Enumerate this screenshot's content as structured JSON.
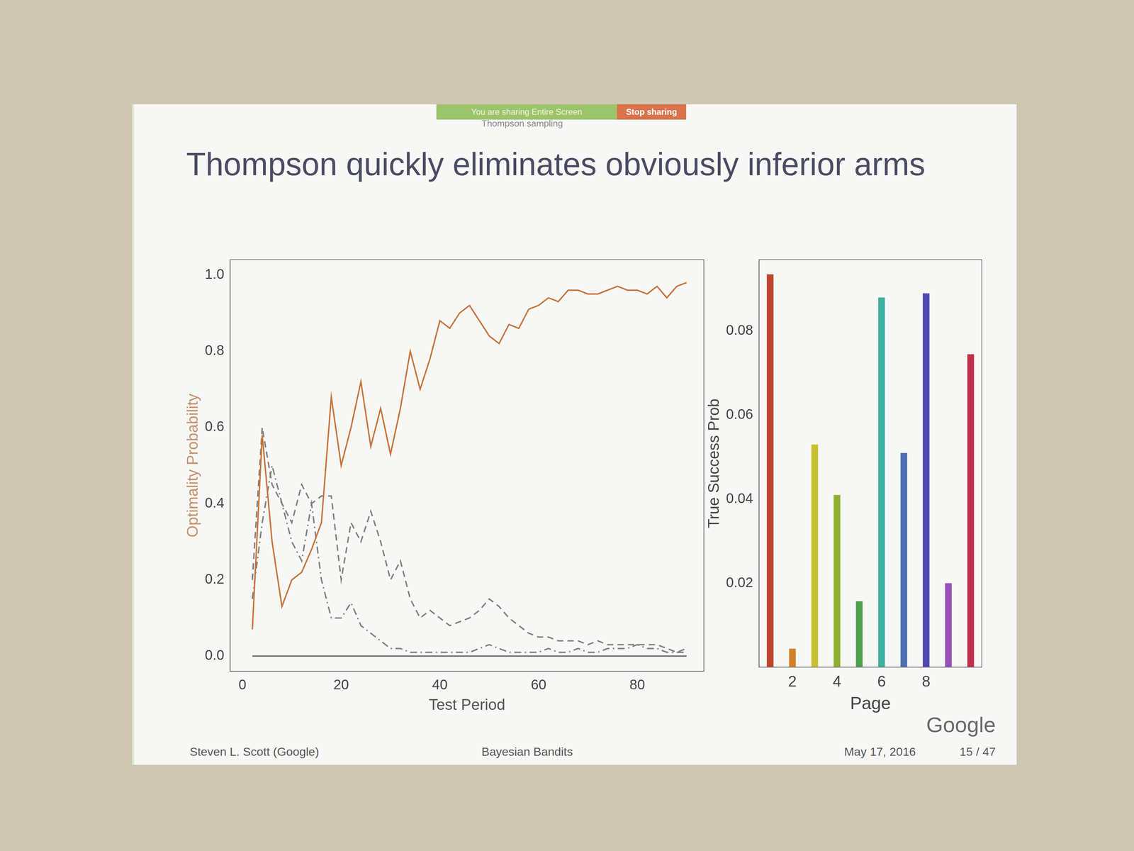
{
  "sharing_bar": {
    "notice": "You are sharing Entire Screen",
    "button": "Stop sharing"
  },
  "section": "Thompson sampling",
  "title": "Thompson quickly eliminates obviously inferior arms",
  "footer": {
    "author": "Steven L. Scott (Google)",
    "talk": "Bayesian Bandits",
    "date": "May 17, 2016",
    "page": "15 / 47"
  },
  "logo": "Google",
  "chart_data": [
    {
      "type": "line",
      "x_label": "Test Period",
      "y_label": "Optimality Probability",
      "x": [
        2,
        4,
        6,
        8,
        10,
        12,
        14,
        16,
        18,
        20,
        22,
        24,
        26,
        28,
        30,
        32,
        34,
        36,
        38,
        40,
        42,
        44,
        46,
        48,
        50,
        52,
        54,
        56,
        58,
        60,
        62,
        64,
        66,
        68,
        70,
        72,
        74,
        76,
        78,
        80,
        82,
        84,
        86,
        88,
        90
      ],
      "series": [
        {
          "color": "#c8733a",
          "line_style": "solid",
          "values": [
            0.07,
            0.58,
            0.3,
            0.13,
            0.2,
            0.22,
            0.28,
            0.35,
            0.68,
            0.5,
            0.6,
            0.72,
            0.55,
            0.65,
            0.53,
            0.65,
            0.8,
            0.7,
            0.78,
            0.88,
            0.86,
            0.9,
            0.92,
            0.88,
            0.84,
            0.82,
            0.87,
            0.86,
            0.91,
            0.92,
            0.94,
            0.93,
            0.96,
            0.96,
            0.95,
            0.95,
            0.96,
            0.97,
            0.96,
            0.96,
            0.95,
            0.97,
            0.94,
            0.97,
            0.98
          ]
        },
        {
          "color": "#808080",
          "line_style": "dashed",
          "values": [
            0.2,
            0.6,
            0.45,
            0.4,
            0.35,
            0.45,
            0.4,
            0.42,
            0.42,
            0.2,
            0.35,
            0.3,
            0.38,
            0.3,
            0.2,
            0.25,
            0.15,
            0.1,
            0.12,
            0.1,
            0.08,
            0.09,
            0.1,
            0.12,
            0.15,
            0.13,
            0.1,
            0.08,
            0.06,
            0.05,
            0.05,
            0.04,
            0.04,
            0.04,
            0.03,
            0.04,
            0.03,
            0.03,
            0.03,
            0.03,
            0.03,
            0.03,
            0.02,
            0.01,
            0.02
          ]
        },
        {
          "color": "#808080",
          "line_style": "dashdot",
          "values": [
            0.15,
            0.35,
            0.5,
            0.4,
            0.3,
            0.25,
            0.4,
            0.2,
            0.1,
            0.1,
            0.14,
            0.08,
            0.06,
            0.04,
            0.02,
            0.02,
            0.01,
            0.01,
            0.01,
            0.01,
            0.01,
            0.01,
            0.01,
            0.02,
            0.03,
            0.02,
            0.01,
            0.01,
            0.01,
            0.01,
            0.02,
            0.01,
            0.01,
            0.02,
            0.01,
            0.01,
            0.02,
            0.02,
            0.02,
            0.03,
            0.02,
            0.02,
            0.01,
            0.01,
            0.01
          ]
        },
        {
          "color": "#707070",
          "line_style": "solid",
          "values": [
            0,
            0,
            0,
            0,
            0,
            0,
            0,
            0,
            0,
            0,
            0,
            0,
            0,
            0,
            0,
            0,
            0,
            0,
            0,
            0,
            0,
            0,
            0,
            0,
            0,
            0,
            0,
            0,
            0,
            0,
            0,
            0,
            0,
            0,
            0,
            0,
            0,
            0,
            0,
            0,
            0,
            0,
            0,
            0,
            0
          ]
        }
      ],
      "xlim": [
        -2.5,
        93.5
      ],
      "xticks": [
        0,
        20,
        40,
        60,
        80
      ],
      "ylim": [
        -0.04,
        1.04
      ],
      "yticks": [
        {
          "value": 0,
          "label": "0.0"
        },
        0.2,
        0.4,
        0.6,
        0.8,
        {
          "value": 1,
          "label": "1.0"
        }
      ],
      "grid": false
    },
    {
      "type": "bar",
      "x_label": "Page",
      "y_label": "True Success Prob",
      "categories": [
        null,
        "2",
        null,
        "4",
        null,
        "6",
        null,
        "8",
        null,
        null
      ],
      "values": [
        0.0935,
        0.0044,
        0.053,
        0.041,
        0.0157,
        0.088,
        0.051,
        0.089,
        0.02,
        0.0745
      ],
      "colors": [
        "#c0452e",
        "#d4802a",
        "#c8c030",
        "#90b030",
        "#50a050",
        "#40b0a0",
        "#5070b0",
        "#4e4cae",
        "#9a50b8",
        "#c0304a"
      ],
      "ylim": [
        0,
        0.097
      ],
      "yticks": [
        0.02,
        0.04,
        0.06,
        0.08
      ],
      "grid": false
    }
  ]
}
